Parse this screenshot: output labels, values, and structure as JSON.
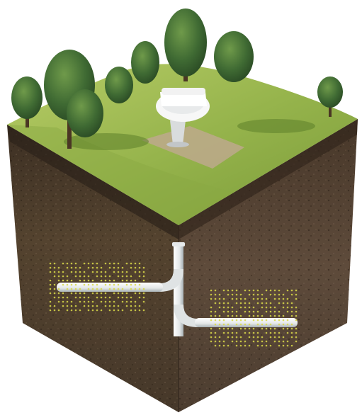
{
  "scene": {
    "subject": "underground-septic-drainfield-cutaway",
    "colors": {
      "background": "#ffffff",
      "grass_light": "#a8c35a",
      "grass_dark": "#6e9132",
      "soil_left": "#4a3a2c",
      "soil_right": "#5a473a",
      "soil_dark": "#2e241b",
      "tree_foliage": "#2f5a2a",
      "tree_foliage_light": "#4f7a3a",
      "pad": "#b8a88f",
      "toilet": "#f4f4f4",
      "pipe": "#eef0f0",
      "pipe_shadow": "#a9b1b5",
      "effluent": "#d8d84a"
    }
  }
}
